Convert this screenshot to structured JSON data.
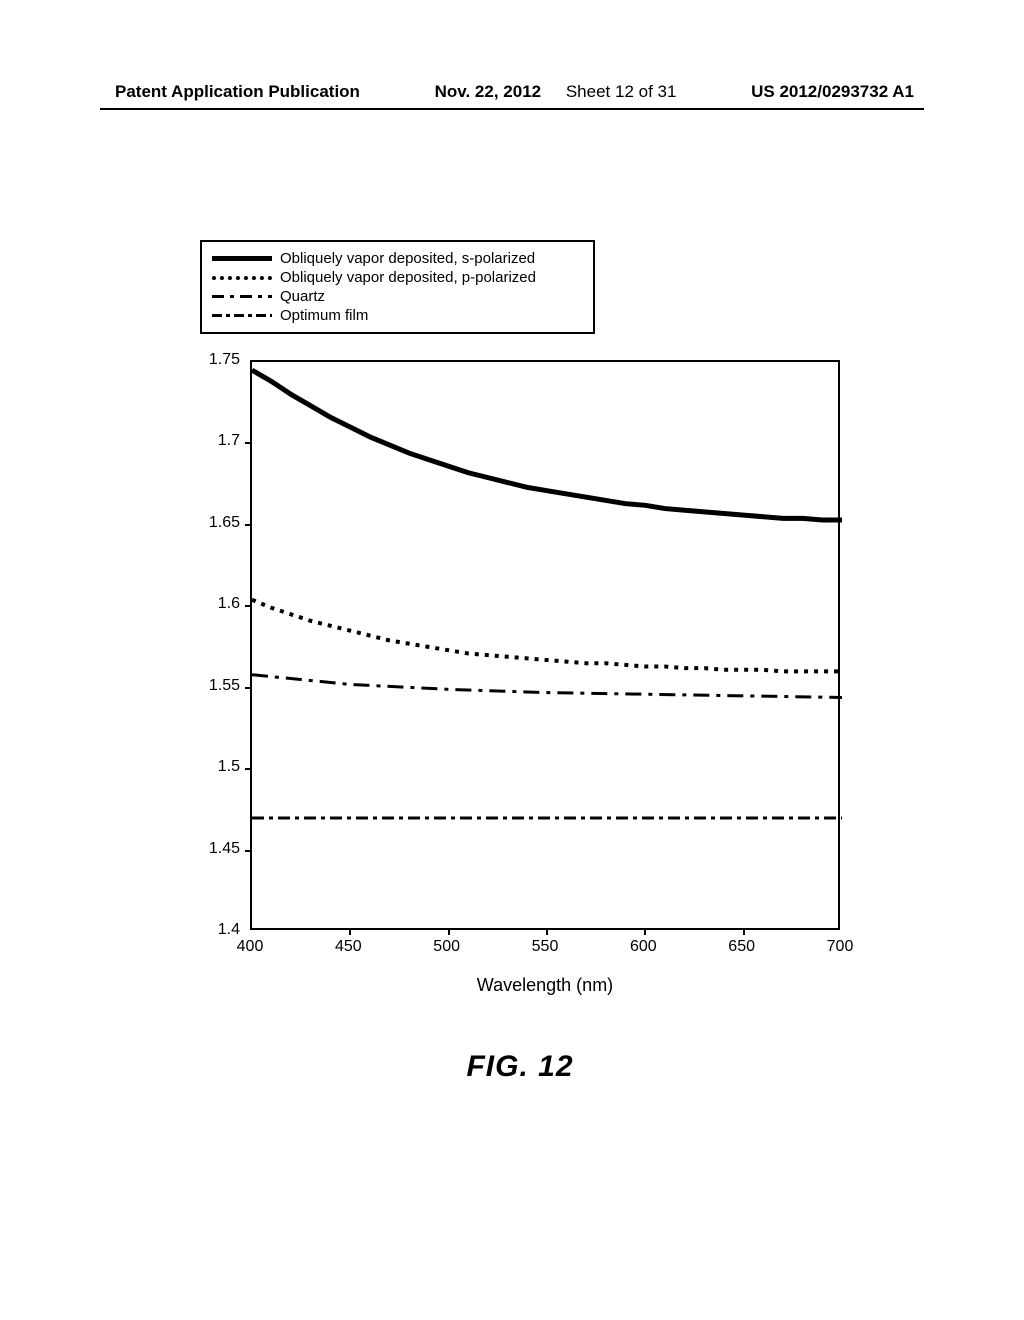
{
  "header": {
    "left": "Patent Application Publication",
    "date": "Nov. 22, 2012",
    "sheet": "Sheet 12 of 31",
    "pubno": "US 2012/0293732 A1"
  },
  "figure_label": "FIG. 12",
  "chart": {
    "type": "line",
    "xlabel": "Wavelength (nm)",
    "xlim": [
      400,
      700
    ],
    "ylim": [
      1.4,
      1.75
    ],
    "xticks": [
      400,
      450,
      500,
      550,
      600,
      650,
      700
    ],
    "yticks": [
      1.4,
      1.45,
      1.5,
      1.55,
      1.6,
      1.65,
      1.7,
      1.75
    ],
    "background_color": "#ffffff",
    "border_color": "#000000",
    "tick_fontsize": 16,
    "label_fontsize": 18,
    "legend": {
      "items": [
        {
          "label": "Obliquely vapor deposited, s-polarized",
          "style": "solid",
          "width": 5,
          "color": "#000000"
        },
        {
          "label": "Obliquely vapor deposited, p-polarized",
          "style": "dotted",
          "width": 4,
          "color": "#000000"
        },
        {
          "label": "Quartz",
          "style": "dashdot",
          "width": 3,
          "color": "#000000"
        },
        {
          "label": "Optimum film",
          "style": "dash",
          "width": 3,
          "color": "#000000"
        }
      ]
    },
    "series": {
      "s_polarized": {
        "style": "solid",
        "width": 5,
        "color": "#000000",
        "points": [
          [
            400,
            1.745
          ],
          [
            410,
            1.738
          ],
          [
            420,
            1.73
          ],
          [
            430,
            1.723
          ],
          [
            440,
            1.716
          ],
          [
            450,
            1.71
          ],
          [
            460,
            1.704
          ],
          [
            470,
            1.699
          ],
          [
            480,
            1.694
          ],
          [
            490,
            1.69
          ],
          [
            500,
            1.686
          ],
          [
            510,
            1.682
          ],
          [
            520,
            1.679
          ],
          [
            530,
            1.676
          ],
          [
            540,
            1.673
          ],
          [
            550,
            1.671
          ],
          [
            560,
            1.669
          ],
          [
            570,
            1.667
          ],
          [
            580,
            1.665
          ],
          [
            590,
            1.663
          ],
          [
            600,
            1.662
          ],
          [
            610,
            1.66
          ],
          [
            620,
            1.659
          ],
          [
            630,
            1.658
          ],
          [
            640,
            1.657
          ],
          [
            650,
            1.656
          ],
          [
            660,
            1.655
          ],
          [
            670,
            1.654
          ],
          [
            680,
            1.654
          ],
          [
            690,
            1.653
          ],
          [
            700,
            1.653
          ]
        ]
      },
      "p_polarized": {
        "style": "dotted",
        "width": 4,
        "color": "#000000",
        "points": [
          [
            400,
            1.604
          ],
          [
            410,
            1.599
          ],
          [
            420,
            1.595
          ],
          [
            430,
            1.591
          ],
          [
            440,
            1.588
          ],
          [
            450,
            1.585
          ],
          [
            460,
            1.582
          ],
          [
            470,
            1.579
          ],
          [
            480,
            1.577
          ],
          [
            490,
            1.575
          ],
          [
            500,
            1.573
          ],
          [
            510,
            1.571
          ],
          [
            520,
            1.57
          ],
          [
            530,
            1.569
          ],
          [
            540,
            1.568
          ],
          [
            550,
            1.567
          ],
          [
            560,
            1.566
          ],
          [
            570,
            1.565
          ],
          [
            580,
            1.565
          ],
          [
            590,
            1.564
          ],
          [
            600,
            1.563
          ],
          [
            610,
            1.563
          ],
          [
            620,
            1.562
          ],
          [
            630,
            1.562
          ],
          [
            640,
            1.561
          ],
          [
            650,
            1.561
          ],
          [
            660,
            1.561
          ],
          [
            670,
            1.56
          ],
          [
            680,
            1.56
          ],
          [
            690,
            1.56
          ],
          [
            700,
            1.56
          ]
        ]
      },
      "quartz": {
        "style": "dashdot",
        "width": 3,
        "color": "#000000",
        "points": [
          [
            400,
            1.558
          ],
          [
            450,
            1.552
          ],
          [
            500,
            1.549
          ],
          [
            550,
            1.547
          ],
          [
            600,
            1.546
          ],
          [
            650,
            1.545
          ],
          [
            700,
            1.544
          ]
        ]
      },
      "optimum": {
        "style": "dash",
        "width": 3,
        "color": "#000000",
        "points": [
          [
            400,
            1.47
          ],
          [
            450,
            1.47
          ],
          [
            500,
            1.47
          ],
          [
            550,
            1.47
          ],
          [
            600,
            1.47
          ],
          [
            650,
            1.47
          ],
          [
            700,
            1.47
          ]
        ]
      }
    }
  }
}
